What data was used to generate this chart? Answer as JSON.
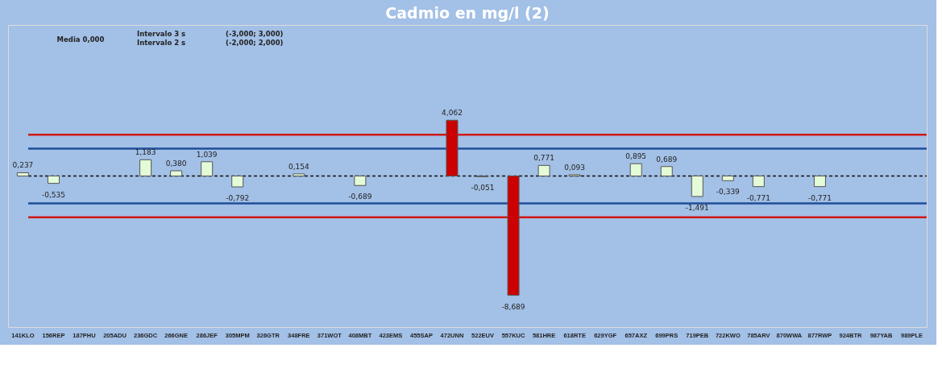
{
  "chart_data": {
    "type": "bar",
    "title": "Cadmio en mg/l (2)",
    "categories": [
      "141KLO",
      "156REP",
      "187PHU",
      "205ADU",
      "236GDC",
      "266GNE",
      "286JEF",
      "305MPM",
      "326GTR",
      "348FRE",
      "371WOT",
      "408MBT",
      "423EMS",
      "455SAP",
      "472UNN",
      "522EUV",
      "557KUC",
      "581HRE",
      "618RTE",
      "629YGF",
      "657AXZ",
      "699PRS",
      "719PEB",
      "722KWO",
      "785ARV",
      "870WWA",
      "877RWP",
      "924BTR",
      "987YAB",
      "989PLE"
    ],
    "values": [
      0.237,
      -0.535,
      null,
      null,
      1.183,
      0.38,
      1.039,
      -0.792,
      null,
      0.154,
      null,
      -0.689,
      null,
      null,
      4.062,
      -0.051,
      -8.689,
      0.771,
      0.093,
      null,
      0.895,
      0.689,
      -1.491,
      -0.339,
      -0.771,
      null,
      -0.771,
      null,
      null,
      null
    ],
    "value_labels": [
      "0,237",
      "-0,535",
      null,
      null,
      "1,183",
      "0,380",
      "1,039",
      "-0,792",
      null,
      "0,154",
      null,
      "-0,689",
      null,
      null,
      "4,062",
      "-0,051",
      "-8,689",
      "0,771",
      "0,093",
      null,
      "0,895",
      "0,689",
      "-1,491",
      "-0,339",
      "-0,771",
      null,
      "-0,771",
      null,
      null,
      null
    ],
    "colors": [
      "#e4fbd8",
      "#e4fbd8",
      "#e4fbd8",
      "#e4fbd8",
      "#e4fbd8",
      "#e4fbd8",
      "#e4fbd8",
      "#e4fbd8",
      "#e4fbd8",
      "#e4fbd8",
      "#e4fbd8",
      "#e4fbd8",
      "#e4fbd8",
      "#e4fbd8",
      "#cc0000",
      "#e4fbd8",
      "#cc0000",
      "#e4fbd8",
      "#e4fbd8",
      "#e4fbd8",
      "#e4fbd8",
      "#e4fbd8",
      "#e4fbd8",
      "#e4fbd8",
      "#e4fbd8",
      "#e4fbd8",
      "#e4fbd8",
      "#e4fbd8",
      "#e4fbd8",
      "#e4fbd8"
    ],
    "ylim": [
      -11,
      11
    ],
    "tick_labels": "x",
    "ref_lines": [
      {
        "axis": "y",
        "value": 3,
        "color": "#d01818",
        "line_style": "solid"
      },
      {
        "axis": "y",
        "value": -3,
        "color": "#d01818",
        "line_style": "solid"
      },
      {
        "axis": "y",
        "value": 2,
        "color": "#1f4e9a",
        "line_style": "solid"
      },
      {
        "axis": "y",
        "value": -2,
        "color": "#1f4e9a",
        "line_style": "solid"
      },
      {
        "axis": "y",
        "value": 0,
        "color": "#111111",
        "line_style": "dashed"
      }
    ],
    "annotations": [
      "Media 0,000",
      "Intervalo 3 s",
      "(-3,000; 3,000)",
      "Intervalo 2 s",
      "(-2,000; 2,000)"
    ]
  }
}
